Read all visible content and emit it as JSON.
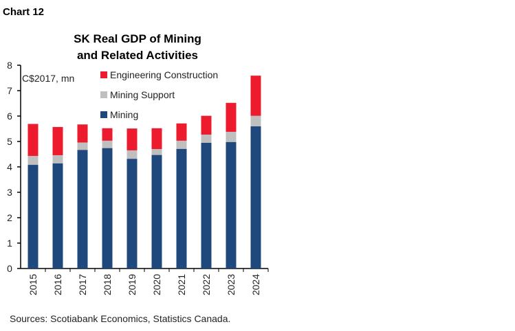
{
  "header": {
    "label": "Chart 12"
  },
  "source": "Sources: Scotiabank Economics, Statistics Canada.",
  "chart_data": {
    "type": "bar",
    "stacked": true,
    "title": [
      "SK Real GDP of Mining",
      "and Related Activities"
    ],
    "unit_label": "C$2017, mn",
    "categories": [
      "2015",
      "2016",
      "2017",
      "2018",
      "2019",
      "2020",
      "2021",
      "2022",
      "2023",
      "2024"
    ],
    "series": [
      {
        "name": "Mining",
        "color": "#1f497d",
        "values": [
          4.08,
          4.14,
          4.67,
          4.74,
          4.32,
          4.47,
          4.71,
          4.95,
          4.98,
          5.6
        ]
      },
      {
        "name": "Mining Support",
        "color": "#bfbfbf",
        "values": [
          0.35,
          0.32,
          0.29,
          0.29,
          0.33,
          0.23,
          0.32,
          0.32,
          0.4,
          0.41
        ]
      },
      {
        "name": "Engineering Construction",
        "color": "#ec1c2e",
        "values": [
          1.26,
          1.11,
          0.71,
          0.49,
          0.86,
          0.82,
          0.68,
          0.74,
          1.14,
          1.58
        ]
      }
    ],
    "legend_order": [
      "Engineering Construction",
      "Mining Support",
      "Mining"
    ],
    "ylim": [
      0,
      8
    ],
    "yticks": [
      "0",
      "1",
      "2",
      "3",
      "4",
      "5",
      "6",
      "7",
      "8"
    ],
    "grid": false,
    "legend_position": "top-left"
  }
}
